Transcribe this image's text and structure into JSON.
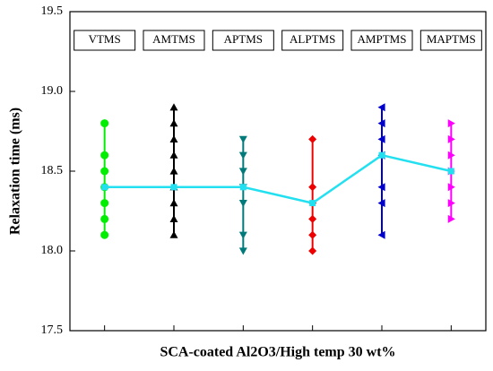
{
  "chart_data": {
    "type": "dot-range",
    "xlabel": "SCA-coated Al2O3/High temp 30 wt%",
    "ylabel": "Relaxation time (ms)",
    "ylim": [
      17.5,
      19.5
    ],
    "yticks": [
      17.5,
      {
        "value": 18,
        "label": "18.0"
      },
      18.5,
      {
        "value": 19,
        "label": "19.0"
      },
      19.5
    ],
    "series": [
      {
        "name": "VTMS",
        "color": "#00ee00",
        "marker": "circle",
        "values": [
          18.8,
          18.6,
          18.5,
          18.4,
          18.3,
          18.2,
          18.1
        ]
      },
      {
        "name": "AMTMS",
        "color": "#000000",
        "marker": "triangle-up",
        "values": [
          18.9,
          18.8,
          18.7,
          18.6,
          18.5,
          18.4,
          18.3,
          18.2,
          18.1
        ]
      },
      {
        "name": "APTMS",
        "color": "#007a7a",
        "marker": "triangle-down",
        "values": [
          18.7,
          18.6,
          18.5,
          18.4,
          18.3,
          18.1,
          18.0
        ]
      },
      {
        "name": "ALPTMS",
        "color": "#ee0000",
        "marker": "diamond",
        "values": [
          18.7,
          18.4,
          18.3,
          18.2,
          18.1,
          18.0
        ]
      },
      {
        "name": "AMPTMS",
        "color": "#0000cc",
        "marker": "triangle-left",
        "values": [
          18.9,
          18.8,
          18.7,
          18.6,
          18.4,
          18.3,
          18.1
        ]
      },
      {
        "name": "MAPTMS",
        "color": "#ff00ff",
        "marker": "triangle-right",
        "values": [
          18.8,
          18.7,
          18.6,
          18.5,
          18.4,
          18.3,
          18.2
        ]
      }
    ],
    "mean": {
      "color": "#22e0f0",
      "values": [
        18.4,
        18.4,
        18.4,
        18.3,
        18.6,
        18.5
      ]
    }
  }
}
